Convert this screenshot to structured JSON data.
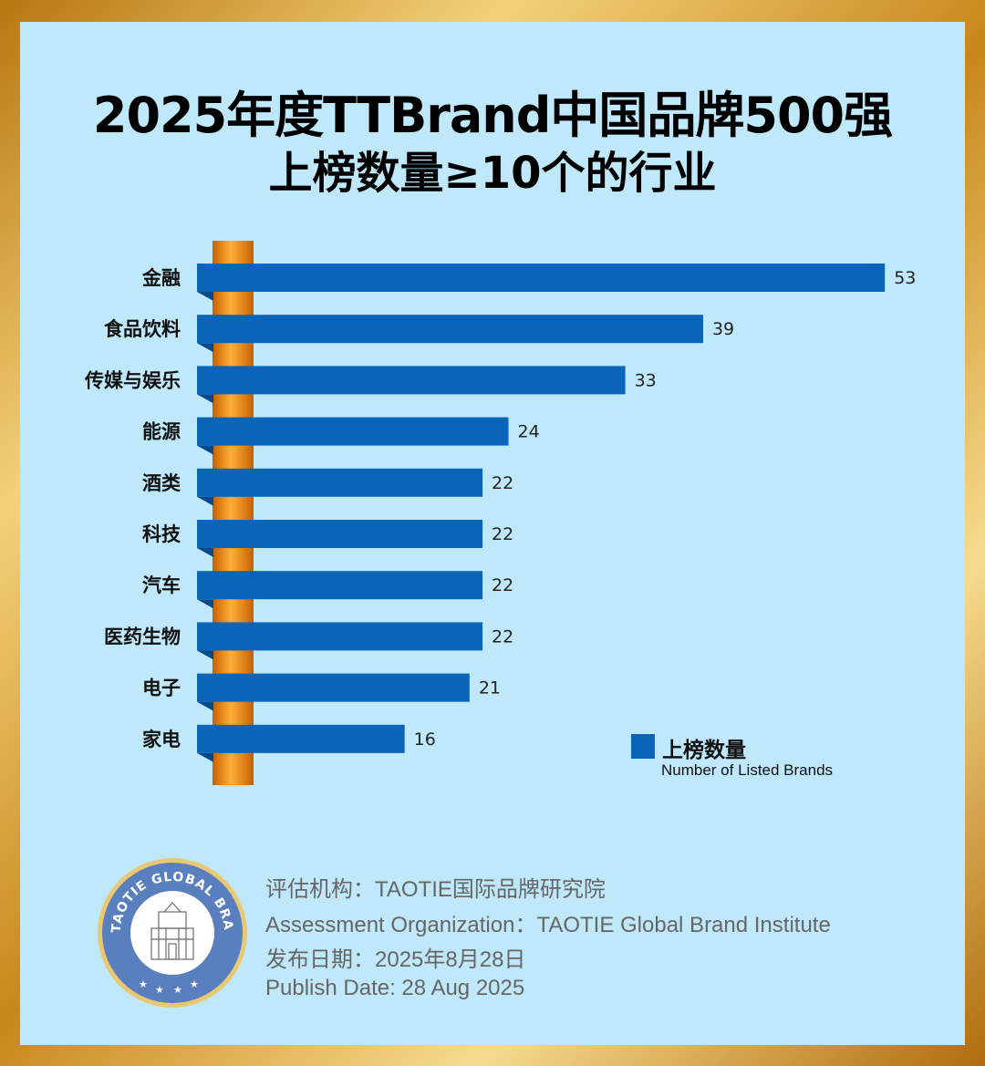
{
  "header": {
    "title_line1": "2025年度TTBrand中国品牌500强",
    "title_line2": "上榜数量≥10个的行业"
  },
  "chart_data": {
    "type": "bar",
    "orientation": "horizontal",
    "categories": [
      "金融",
      "食品饮料",
      "传媒与娱乐",
      "能源",
      "酒类",
      "科技",
      "汽车",
      "医药生物",
      "电子",
      "家电"
    ],
    "values": [
      53,
      39,
      33,
      24,
      22,
      22,
      22,
      22,
      21,
      16
    ],
    "series": [
      {
        "name": "上榜数量",
        "name_en": "Number of Listed Brands",
        "values": [
          53,
          39,
          33,
          24,
          22,
          22,
          22,
          22,
          21,
          16
        ]
      }
    ],
    "legend_position": "bottom-right",
    "grid": false
  },
  "legend": {
    "cn": "上榜数量",
    "en": "Number of Listed Brands"
  },
  "colors": {
    "bar": "#0a64b8",
    "panel": "#bfe8fb",
    "pillar": "#f28c1c",
    "frame": "#c8871a"
  },
  "seal": {
    "text": "TAOTIE GLOBAL BRAND INSTITUTE"
  },
  "footer": {
    "org_cn": "评估机构：TAOTIE国际品牌研究院",
    "org_en": "Assessment Organization：TAOTIE Global Brand Institute",
    "date_cn": "发布日期：2025年8月28日",
    "date_en": "Publish Date: 28 Aug 2025"
  }
}
